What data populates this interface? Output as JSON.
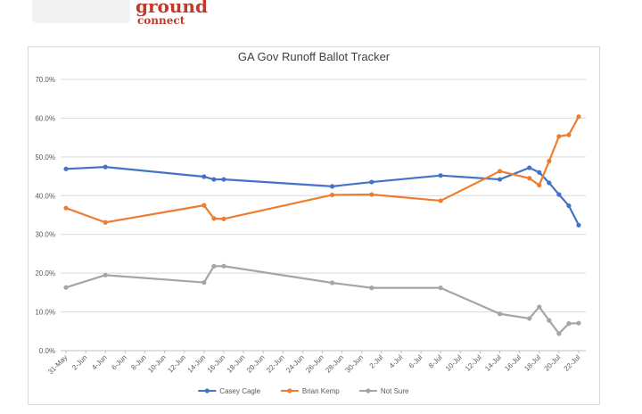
{
  "logo": {
    "text": "ground",
    "sub": "connect"
  },
  "chart_data": {
    "type": "line",
    "title": "GA Gov Runoff Ballot Tracker",
    "xlabel": "",
    "ylabel": "",
    "ylim": [
      0,
      70
    ],
    "yticks": [
      "0.0%",
      "10.0%",
      "20.0%",
      "30.0%",
      "40.0%",
      "50.0%",
      "60.0%",
      "70.0%"
    ],
    "xticks": [
      "31-May",
      "2-Jun",
      "4-Jun",
      "6-Jun",
      "8-Jun",
      "10-Jun",
      "12-Jun",
      "14-Jun",
      "16-Jun",
      "18-Jun",
      "20-Jun",
      "22-Jun",
      "24-Jun",
      "26-Jun",
      "28-Jun",
      "30-Jun",
      "2-Jul",
      "4-Jul",
      "6-Jul",
      "8-Jul",
      "10-Jul",
      "12-Jul",
      "14-Jul",
      "16-Jul",
      "18-Jul",
      "20-Jul",
      "22-Jul"
    ],
    "grid": true,
    "legend_position": "bottom",
    "x": [
      "31-May",
      "4-Jun",
      "14-Jun",
      "15-Jun",
      "16-Jun",
      "27-Jun",
      "1-Jul",
      "8-Jul",
      "14-Jul",
      "17-Jul",
      "18-Jul",
      "19-Jul",
      "20-Jul",
      "21-Jul",
      "22-Jul"
    ],
    "series": [
      {
        "name": "Casey Cagle",
        "color": "#4472c4",
        "values": [
          46.9,
          47.4,
          44.9,
          44.2,
          44.2,
          42.4,
          43.5,
          45.2,
          44.2,
          47.2,
          46.0,
          43.3,
          40.3,
          37.4,
          32.4
        ]
      },
      {
        "name": "Brian Kemp",
        "color": "#ed7d31",
        "values": [
          36.8,
          33.1,
          37.5,
          34.1,
          34.0,
          40.2,
          40.3,
          38.7,
          46.3,
          44.5,
          42.7,
          48.9,
          55.3,
          55.7,
          60.4
        ]
      },
      {
        "name": "Not Sure",
        "color": "#a5a5a5",
        "values": [
          16.3,
          19.5,
          17.6,
          21.8,
          21.8,
          17.5,
          16.2,
          16.2,
          9.5,
          8.3,
          11.3,
          7.8,
          4.4,
          7.0,
          7.1
        ]
      }
    ]
  }
}
